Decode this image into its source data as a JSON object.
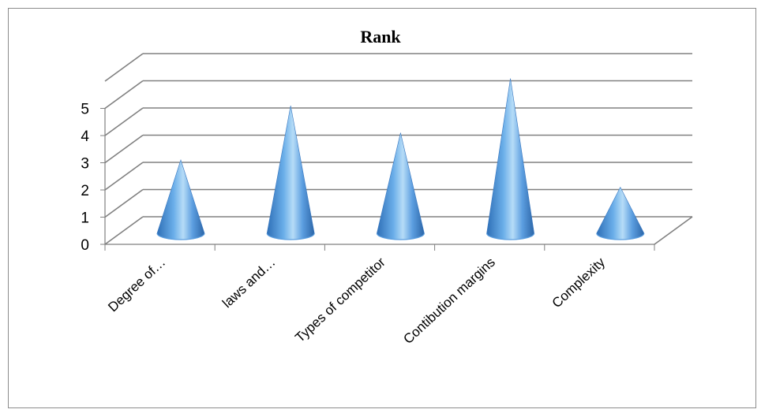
{
  "chart_data": {
    "type": "bar",
    "style": "3d-cone",
    "title": "Rank",
    "categories": [
      "Degree of…",
      "laws and…",
      "Types of competitor",
      "Contibution margins",
      "Complexity"
    ],
    "values": [
      2,
      4,
      3,
      5,
      1
    ],
    "ylim": [
      0,
      5
    ],
    "yticks": [
      0,
      1,
      2,
      3,
      4,
      5
    ],
    "grid": true,
    "legend": "none",
    "colors": {
      "cone": "#4f8fd6",
      "cone_light": "#a9d4f5",
      "cone_dark": "#2e6fb7",
      "gridline": "#808080",
      "axis": "#808080"
    }
  }
}
